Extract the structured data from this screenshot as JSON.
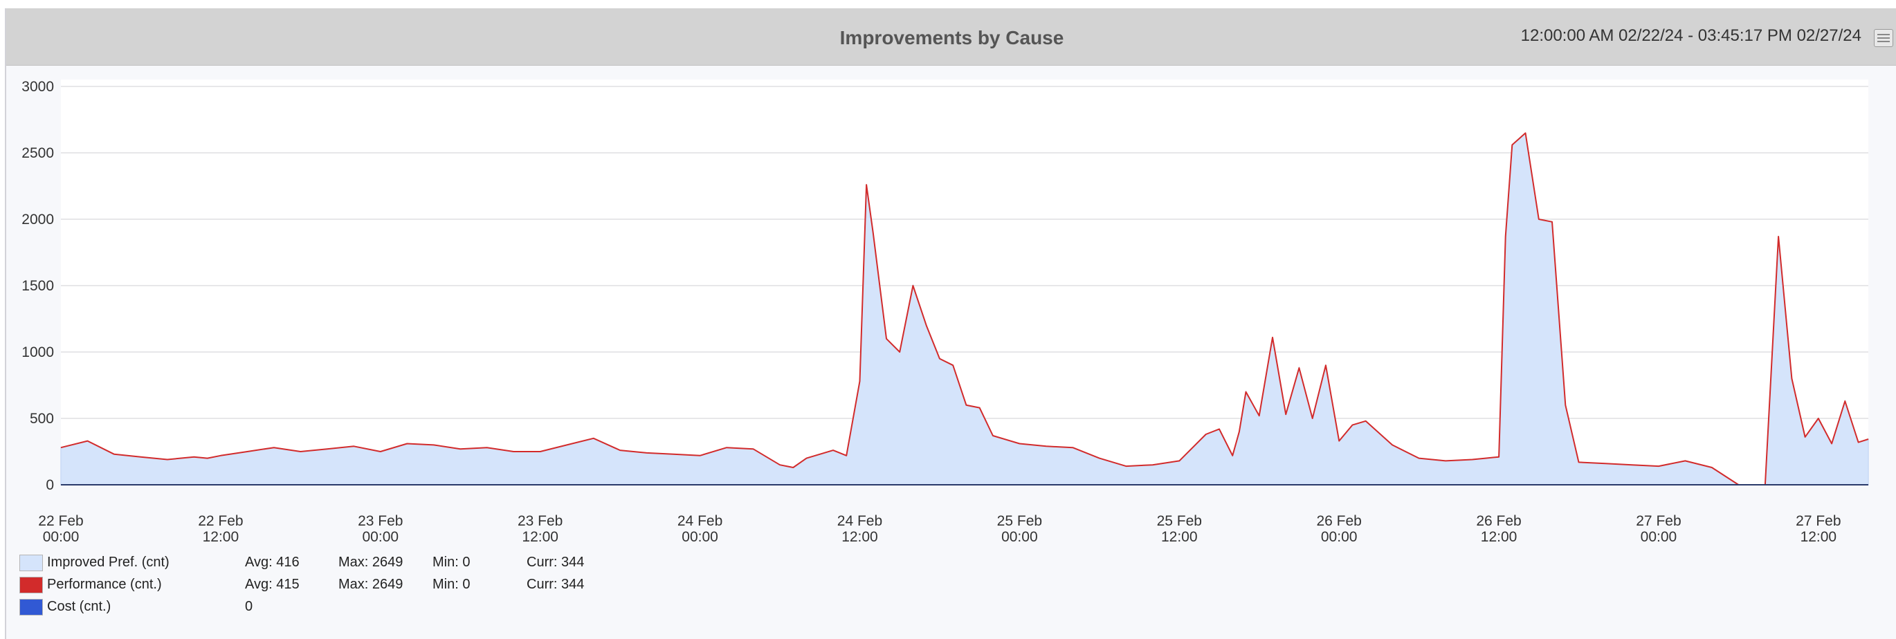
{
  "header": {
    "title": "Improvements by Cause",
    "time_range": "12:00:00 AM 02/22/24 - 03:45:17 PM 02/27/24",
    "menu_icon": "table-menu-icon"
  },
  "colors": {
    "improved_fill": "#d5e4fb",
    "improved_line": "#c9daf6",
    "performance": "#d22b2b",
    "cost": "#3159d4",
    "grid": "#cfcfd3",
    "axis": "#2a3a6a"
  },
  "legend": [
    {
      "name": "Improved Pref. (cnt)",
      "avg": "Avg: 416",
      "max": "Max: 2649",
      "min": "Min: 0",
      "curr": "Curr: 344",
      "color": "#d5e4fb"
    },
    {
      "name": "Performance (cnt.)",
      "avg": "Avg: 415",
      "max": "Max: 2649",
      "min": "Min: 0",
      "curr": "Curr: 344",
      "color": "#d22b2b"
    },
    {
      "name": "Cost (cnt.)",
      "avg": "0",
      "max": "",
      "min": "",
      "curr": "",
      "color": "#3159d4"
    }
  ],
  "chart_data": {
    "type": "area",
    "ylim": [
      0,
      3000
    ],
    "yticks": [
      0,
      500,
      1000,
      1500,
      2000,
      2500,
      3000
    ],
    "xlim": [
      "2024-02-22 00:00",
      "2024-02-27 15:45"
    ],
    "xticks": [
      {
        "line1": "22 Feb",
        "line2": "00:00"
      },
      {
        "line1": "22 Feb",
        "line2": "12:00"
      },
      {
        "line1": "23 Feb",
        "line2": "00:00"
      },
      {
        "line1": "23 Feb",
        "line2": "12:00"
      },
      {
        "line1": "24 Feb",
        "line2": "00:00"
      },
      {
        "line1": "24 Feb",
        "line2": "12:00"
      },
      {
        "line1": "25 Feb",
        "line2": "00:00"
      },
      {
        "line1": "25 Feb",
        "line2": "12:00"
      },
      {
        "line1": "26 Feb",
        "line2": "00:00"
      },
      {
        "line1": "26 Feb",
        "line2": "12:00"
      },
      {
        "line1": "27 Feb",
        "line2": "00:00"
      },
      {
        "line1": "27 Feb",
        "line2": "12:00"
      }
    ],
    "grid": true,
    "series": [
      {
        "name": "Improved Pref. (cnt)",
        "style": "area",
        "x": [
          "2024-02-22 00:00",
          "2024-02-22 02:00",
          "2024-02-22 04:00",
          "2024-02-22 06:00",
          "2024-02-22 08:00",
          "2024-02-22 10:00",
          "2024-02-22 11:00",
          "2024-02-22 12:00",
          "2024-02-22 14:00",
          "2024-02-22 16:00",
          "2024-02-22 18:00",
          "2024-02-22 20:00",
          "2024-02-22 22:00",
          "2024-02-23 00:00",
          "2024-02-23 02:00",
          "2024-02-23 04:00",
          "2024-02-23 06:00",
          "2024-02-23 08:00",
          "2024-02-23 10:00",
          "2024-02-23 12:00",
          "2024-02-23 14:00",
          "2024-02-23 16:00",
          "2024-02-23 18:00",
          "2024-02-23 20:00",
          "2024-02-23 22:00",
          "2024-02-24 00:00",
          "2024-02-24 02:00",
          "2024-02-24 04:00",
          "2024-02-24 06:00",
          "2024-02-24 07:00",
          "2024-02-24 08:00",
          "2024-02-24 10:00",
          "2024-02-24 11:00",
          "2024-02-24 12:00",
          "2024-02-24 12:30",
          "2024-02-24 13:00",
          "2024-02-24 14:00",
          "2024-02-24 15:00",
          "2024-02-24 16:00",
          "2024-02-24 17:00",
          "2024-02-24 18:00",
          "2024-02-24 19:00",
          "2024-02-24 20:00",
          "2024-02-24 21:00",
          "2024-02-24 22:00",
          "2024-02-25 00:00",
          "2024-02-25 02:00",
          "2024-02-25 04:00",
          "2024-02-25 06:00",
          "2024-02-25 08:00",
          "2024-02-25 10:00",
          "2024-02-25 12:00",
          "2024-02-25 14:00",
          "2024-02-25 15:00",
          "2024-02-25 16:00",
          "2024-02-25 16:30",
          "2024-02-25 17:00",
          "2024-02-25 18:00",
          "2024-02-25 19:00",
          "2024-02-25 20:00",
          "2024-02-25 21:00",
          "2024-02-25 22:00",
          "2024-02-25 23:00",
          "2024-02-26 00:00",
          "2024-02-26 01:00",
          "2024-02-26 02:00",
          "2024-02-26 04:00",
          "2024-02-26 06:00",
          "2024-02-26 08:00",
          "2024-02-26 10:00",
          "2024-02-26 11:00",
          "2024-02-26 12:00",
          "2024-02-26 12:30",
          "2024-02-26 13:00",
          "2024-02-26 14:00",
          "2024-02-26 15:00",
          "2024-02-26 16:00",
          "2024-02-26 17:00",
          "2024-02-26 18:00",
          "2024-02-26 20:00",
          "2024-02-26 22:00",
          "2024-02-27 00:00",
          "2024-02-27 02:00",
          "2024-02-27 04:00",
          "2024-02-27 06:00",
          "2024-02-27 07:00",
          "2024-02-27 08:00",
          "2024-02-27 09:00",
          "2024-02-27 10:00",
          "2024-02-27 11:00",
          "2024-02-27 12:00",
          "2024-02-27 13:00",
          "2024-02-27 14:00",
          "2024-02-27 15:00",
          "2024-02-27 15:45"
        ],
        "values": [
          280,
          330,
          230,
          210,
          190,
          210,
          200,
          220,
          250,
          280,
          250,
          270,
          290,
          250,
          310,
          300,
          270,
          280,
          250,
          250,
          300,
          350,
          260,
          240,
          230,
          220,
          280,
          270,
          150,
          130,
          200,
          260,
          220,
          780,
          2260,
          1900,
          1100,
          1000,
          1500,
          1200,
          950,
          900,
          600,
          580,
          370,
          310,
          290,
          280,
          200,
          140,
          150,
          180,
          380,
          420,
          220,
          400,
          700,
          520,
          1110,
          530,
          880,
          500,
          900,
          330,
          450,
          480,
          300,
          200,
          180,
          190,
          200,
          210,
          1870,
          2560,
          2649,
          2000,
          1980,
          600,
          170,
          160,
          150,
          140,
          180,
          130,
          0,
          0,
          0,
          1870,
          800,
          360,
          500,
          310,
          630,
          320,
          344
        ],
        "color": "#d5e4fb"
      },
      {
        "name": "Performance (cnt.)",
        "style": "line",
        "x": [
          "2024-02-22 00:00",
          "2024-02-22 02:00",
          "2024-02-22 04:00",
          "2024-02-22 06:00",
          "2024-02-22 08:00",
          "2024-02-22 10:00",
          "2024-02-22 11:00",
          "2024-02-22 12:00",
          "2024-02-22 14:00",
          "2024-02-22 16:00",
          "2024-02-22 18:00",
          "2024-02-22 20:00",
          "2024-02-22 22:00",
          "2024-02-23 00:00",
          "2024-02-23 02:00",
          "2024-02-23 04:00",
          "2024-02-23 06:00",
          "2024-02-23 08:00",
          "2024-02-23 10:00",
          "2024-02-23 12:00",
          "2024-02-23 14:00",
          "2024-02-23 16:00",
          "2024-02-23 18:00",
          "2024-02-23 20:00",
          "2024-02-23 22:00",
          "2024-02-24 00:00",
          "2024-02-24 02:00",
          "2024-02-24 04:00",
          "2024-02-24 06:00",
          "2024-02-24 07:00",
          "2024-02-24 08:00",
          "2024-02-24 10:00",
          "2024-02-24 11:00",
          "2024-02-24 12:00",
          "2024-02-24 12:30",
          "2024-02-24 13:00",
          "2024-02-24 14:00",
          "2024-02-24 15:00",
          "2024-02-24 16:00",
          "2024-02-24 17:00",
          "2024-02-24 18:00",
          "2024-02-24 19:00",
          "2024-02-24 20:00",
          "2024-02-24 21:00",
          "2024-02-24 22:00",
          "2024-02-25 00:00",
          "2024-02-25 02:00",
          "2024-02-25 04:00",
          "2024-02-25 06:00",
          "2024-02-25 08:00",
          "2024-02-25 10:00",
          "2024-02-25 12:00",
          "2024-02-25 14:00",
          "2024-02-25 15:00",
          "2024-02-25 16:00",
          "2024-02-25 16:30",
          "2024-02-25 17:00",
          "2024-02-25 18:00",
          "2024-02-25 19:00",
          "2024-02-25 20:00",
          "2024-02-25 21:00",
          "2024-02-25 22:00",
          "2024-02-25 23:00",
          "2024-02-26 00:00",
          "2024-02-26 01:00",
          "2024-02-26 02:00",
          "2024-02-26 04:00",
          "2024-02-26 06:00",
          "2024-02-26 08:00",
          "2024-02-26 10:00",
          "2024-02-26 11:00",
          "2024-02-26 12:00",
          "2024-02-26 12:30",
          "2024-02-26 13:00",
          "2024-02-26 14:00",
          "2024-02-26 15:00",
          "2024-02-26 16:00",
          "2024-02-26 17:00",
          "2024-02-26 18:00",
          "2024-02-26 20:00",
          "2024-02-26 22:00",
          "2024-02-27 00:00",
          "2024-02-27 02:00",
          "2024-02-27 04:00",
          "2024-02-27 06:00",
          "2024-02-27 07:00",
          "2024-02-27 08:00",
          "2024-02-27 09:00",
          "2024-02-27 10:00",
          "2024-02-27 11:00",
          "2024-02-27 12:00",
          "2024-02-27 13:00",
          "2024-02-27 14:00",
          "2024-02-27 15:00",
          "2024-02-27 15:45"
        ],
        "values": [
          280,
          330,
          230,
          210,
          190,
          210,
          200,
          220,
          250,
          280,
          250,
          270,
          290,
          250,
          310,
          300,
          270,
          280,
          250,
          250,
          300,
          350,
          260,
          240,
          230,
          220,
          280,
          270,
          150,
          130,
          200,
          260,
          220,
          780,
          2260,
          1900,
          1100,
          1000,
          1500,
          1200,
          950,
          900,
          600,
          580,
          370,
          310,
          290,
          280,
          200,
          140,
          150,
          180,
          380,
          420,
          220,
          400,
          700,
          520,
          1110,
          530,
          880,
          500,
          900,
          330,
          450,
          480,
          300,
          200,
          180,
          190,
          200,
          210,
          1870,
          2560,
          2649,
          2000,
          1980,
          600,
          170,
          160,
          150,
          140,
          180,
          130,
          0,
          0,
          0,
          1870,
          800,
          360,
          500,
          310,
          630,
          320,
          344
        ],
        "color": "#d22b2b"
      },
      {
        "name": "Cost (cnt.)",
        "style": "line",
        "x": [
          "2024-02-22 00:00",
          "2024-02-27 15:45"
        ],
        "values": [
          0,
          0
        ],
        "color": "#3159d4"
      }
    ]
  }
}
